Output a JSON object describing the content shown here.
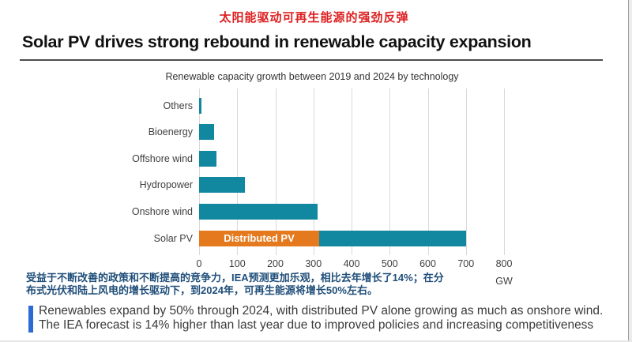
{
  "header": {
    "title_cn": "太阳能驱动可再生能源的强劲反弹",
    "title_en": "Solar PV drives strong rebound in renewable capacity expansion"
  },
  "chart_data": {
    "type": "bar",
    "orientation": "horizontal",
    "title": "Renewable capacity growth between 2019 and 2024 by technology",
    "unit": "GW",
    "xlim": [
      0,
      800
    ],
    "xticks": [
      0,
      100,
      200,
      300,
      400,
      500,
      600,
      700,
      800
    ],
    "grid": true,
    "categories": [
      "Others",
      "Bioenergy",
      "Offshore wind",
      "Hydropower",
      "Onshore wind",
      "Solar PV"
    ],
    "bars": [
      {
        "category": "Others",
        "segments": [
          {
            "label": "",
            "value": 5,
            "color": "#1287a0"
          }
        ]
      },
      {
        "category": "Bioenergy",
        "segments": [
          {
            "label": "",
            "value": 40,
            "color": "#1287a0"
          }
        ]
      },
      {
        "category": "Offshore wind",
        "segments": [
          {
            "label": "",
            "value": 45,
            "color": "#1287a0"
          }
        ]
      },
      {
        "category": "Hydropower",
        "segments": [
          {
            "label": "",
            "value": 120,
            "color": "#1287a0"
          }
        ]
      },
      {
        "category": "Onshore wind",
        "segments": [
          {
            "label": "",
            "value": 310,
            "color": "#1287a0"
          }
        ]
      },
      {
        "category": "Solar PV",
        "segments": [
          {
            "label": "Distributed PV",
            "value": 315,
            "color": "#e5791e"
          },
          {
            "label": "",
            "value": 385,
            "color": "#1287a0"
          }
        ]
      }
    ],
    "colors": {
      "bar_teal": "#1287a0",
      "bar_orange": "#e5791e",
      "gridline": "#d9d9d9"
    }
  },
  "notes": {
    "cn_lines": [
      "受益于不断改善的政策和不断提高的竞争力，IEA预测更加乐观，相比去年增长了14%；在分",
      "布式光伏和陆上风电的增长驱动下，到2024年，可再生能源将增长50%左右。"
    ],
    "en_lines": [
      "Renewables expand by 50% through 2024, with distributed PV alone growing as much as onshore wind.",
      "The IEA forecast is 14% higher than last year due to improved policies and increasing competitiveness"
    ]
  },
  "theme": {
    "title_cn_color": "#dd1f1f",
    "note_cn_color": "#1f4e79",
    "accent_bar_color": "#2b6bd3"
  }
}
